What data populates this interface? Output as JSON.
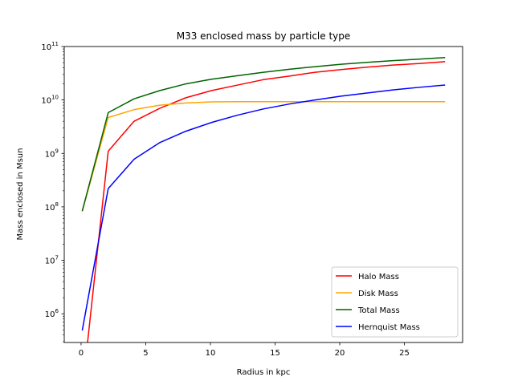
{
  "chart_data": {
    "type": "line",
    "title": "M33 enclosed mass by particle type",
    "xlabel": "Radius in kpc",
    "ylabel": "Mass enclosed in Msun",
    "xlim": [
      -1.3,
      29.5
    ],
    "ylim": [
      290000,
      100000000000
    ],
    "yscale": "log",
    "x_ticks": [
      0,
      5,
      10,
      15,
      20,
      25
    ],
    "y_ticks": [
      {
        "value": 1000000,
        "base": "10",
        "exp": "6"
      },
      {
        "value": 10000000,
        "base": "10",
        "exp": "7"
      },
      {
        "value": 100000000,
        "base": "10",
        "exp": "8"
      },
      {
        "value": 1000000000,
        "base": "10",
        "exp": "9"
      },
      {
        "value": 10000000000,
        "base": "10",
        "exp": "10"
      },
      {
        "value": 100000000000,
        "base": "10",
        "exp": "11"
      }
    ],
    "legend_position": "lower-right",
    "grid": false,
    "x": [
      0.1,
      2.1,
      4.1,
      6.1,
      8.1,
      10.1,
      12.1,
      14.1,
      16.1,
      18.1,
      20.1,
      22.1,
      24.1,
      26.1,
      28.1
    ],
    "series": [
      {
        "name": "Halo Mass",
        "color": "#ff0000",
        "values": [
          0,
          1100000000,
          4000000000,
          7000000000,
          11000000000,
          15000000000,
          19000000000,
          24000000000,
          28000000000,
          33000000000,
          37000000000,
          41000000000,
          45000000000,
          48000000000,
          52000000000
        ]
      },
      {
        "name": "Disk Mass",
        "color": "#ffa500",
        "values": [
          85000000,
          4700000000,
          6600000000,
          8000000000,
          8800000000,
          9200000000,
          9300000000,
          9300000000,
          9300000000,
          9300000000,
          9300000000,
          9300000000,
          9300000000,
          9300000000,
          9300000000
        ]
      },
      {
        "name": "Total Mass",
        "color": "#006400",
        "values": [
          85000000,
          5800000000,
          10500000000,
          15000000000,
          20000000000,
          24500000000,
          28500000000,
          33000000000,
          37500000000,
          42000000000,
          46500000000,
          50500000000,
          54500000000,
          58000000000,
          62000000000
        ]
      },
      {
        "name": "Hernquist Mass",
        "color": "#0000ff",
        "values": [
          500000,
          220000000,
          780000000,
          1600000000,
          2600000000,
          3800000000,
          5200000000,
          6800000000,
          8400000000,
          10000000000,
          11800000000,
          13500000000,
          15400000000,
          17200000000,
          19000000000
        ]
      }
    ]
  }
}
